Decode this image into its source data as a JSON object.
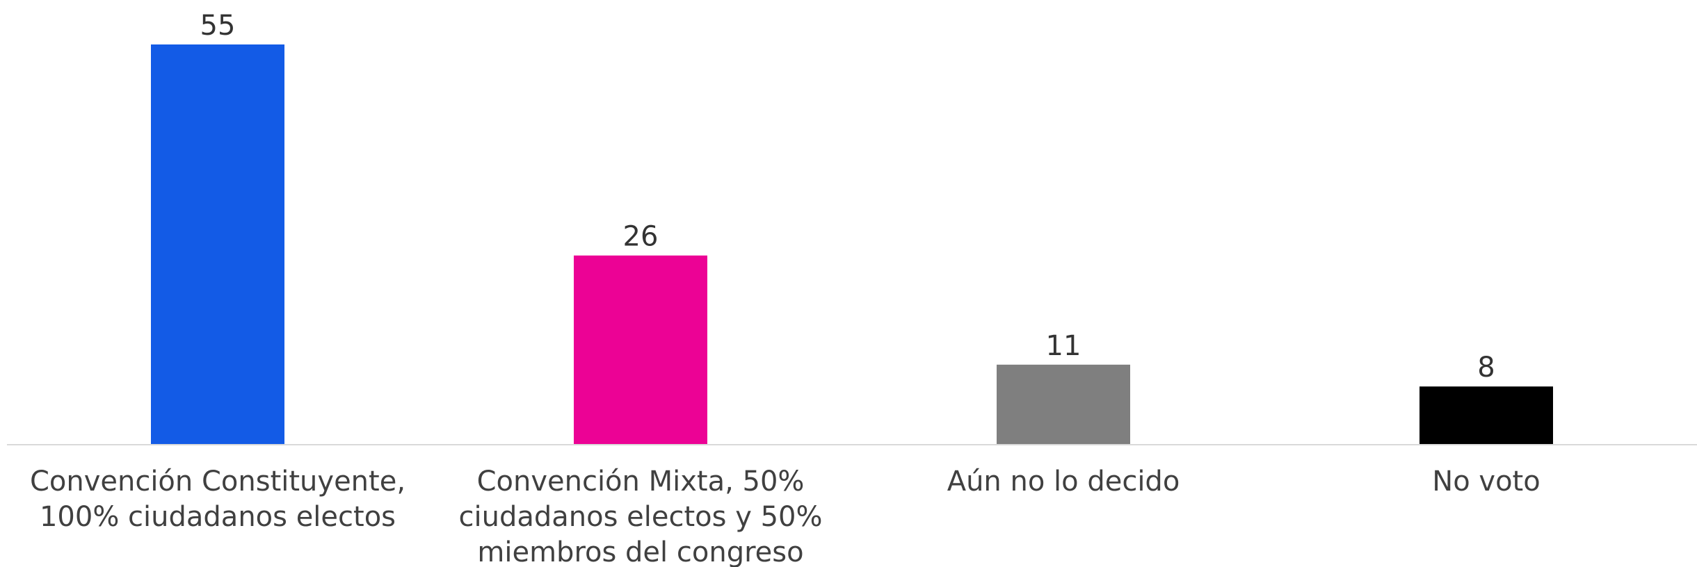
{
  "chart_data": {
    "type": "bar",
    "categories": [
      [
        "Convención Constituyente,",
        "100% ciudadanos electos"
      ],
      [
        "Convención Mixta, 50%",
        "ciudadanos electos y 50%",
        "miembros del congreso"
      ],
      [
        "Aún no lo decido"
      ],
      [
        "No voto"
      ]
    ],
    "values": [
      55,
      26,
      11,
      8
    ],
    "colors": [
      "#135BE6",
      "#EC0295",
      "#7F7F7F",
      "#000000"
    ],
    "ylim": [
      0,
      61
    ],
    "grid": false,
    "legend": "none",
    "data_labels": true
  }
}
